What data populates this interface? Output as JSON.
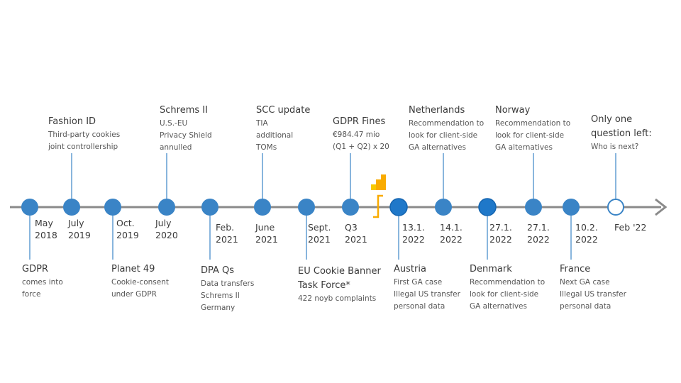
{
  "colors": {
    "axis": "#8a8a8a",
    "node": "#3a84c6",
    "node_active": "#1f78c9",
    "connector": "#3a84c6",
    "logo_orange": "#f9ab00",
    "logo_yellow": "#f7c900"
  },
  "icons": {
    "logo": "google-analytics-logo-icon",
    "axis_end": "arrow-right-icon"
  },
  "events": [
    {
      "id": "ev1",
      "date": [
        "May",
        "2018"
      ],
      "title": "GDPR",
      "details": [
        "comes into",
        "force"
      ],
      "position": "below"
    },
    {
      "id": "ev2",
      "date": [
        "July",
        "2019"
      ],
      "title": "Fashion ID",
      "details": [
        "Third-party cookies",
        "joint controllership"
      ],
      "position": "above"
    },
    {
      "id": "ev3",
      "date": [
        "Oct.",
        "2019"
      ],
      "title": "Planet 49",
      "details": [
        "Cookie-consent",
        "under GDPR"
      ],
      "position": "below"
    },
    {
      "id": "ev4",
      "date": [
        "July",
        "2020"
      ],
      "title": "Schrems II",
      "details": [
        "U.S.-EU",
        "Privacy Shield",
        "annulled"
      ],
      "position": "above"
    },
    {
      "id": "ev5",
      "date": [
        "Feb.",
        "2021"
      ],
      "title": "DPA Qs",
      "details": [
        "Data transfers",
        "Schrems II",
        "Germany"
      ],
      "position": "below"
    },
    {
      "id": "ev6",
      "date": [
        "June",
        "2021"
      ],
      "title": "SCC update",
      "details": [
        "TIA",
        "additional",
        "TOMs"
      ],
      "position": "above"
    },
    {
      "id": "ev7",
      "date": [
        "Sept.",
        "2021"
      ],
      "title": "EU Cookie Banner",
      "title2": "Task Force*",
      "details": [
        "422 noyb complaints"
      ],
      "position": "below"
    },
    {
      "id": "ev8",
      "date": [
        "Q3",
        "2021"
      ],
      "title": "GDPR Fines",
      "details": [
        "€984.47 mio",
        "(Q1 + Q2) x 20"
      ],
      "position": "above"
    },
    {
      "id": "ev9",
      "date": [
        "13.1.",
        "2022"
      ],
      "title": "Austria",
      "details": [
        "First GA case",
        "Illegal US transfer",
        "personal data"
      ],
      "position": "below"
    },
    {
      "id": "ev10",
      "date": [
        "14.1.",
        "2022"
      ],
      "title": "Netherlands",
      "details": [
        "Recommendation to",
        "look for client-side",
        "GA alternatives"
      ],
      "position": "above"
    },
    {
      "id": "ev11",
      "date": [
        "27.1.",
        "2022"
      ],
      "title": "Denmark",
      "details": [
        "Recommendation to",
        "look for client-side",
        "GA alternatives"
      ],
      "position": "below"
    },
    {
      "id": "ev12",
      "date": [
        "27.1.",
        "2022"
      ],
      "title": "Norway",
      "details": [
        "Recommendation to",
        "look for client-side",
        "GA alternatives"
      ],
      "position": "above"
    },
    {
      "id": "ev13",
      "date": [
        "10.2.",
        "2022"
      ],
      "title": "France",
      "details": [
        "Next GA case",
        "Illegal US transfer",
        "personal data"
      ],
      "position": "below"
    },
    {
      "id": "ev14",
      "date": [
        "Feb '22"
      ],
      "title": "Only one",
      "title2": "question left:",
      "details": [
        "Who is next?"
      ],
      "position": "above"
    }
  ]
}
